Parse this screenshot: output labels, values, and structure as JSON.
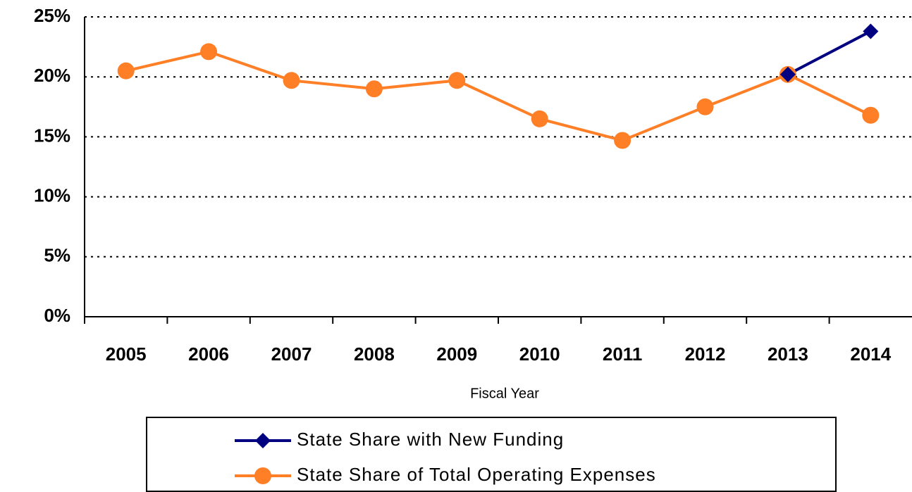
{
  "chart_data": {
    "type": "line",
    "x_label": "Fiscal Year",
    "categories": [
      "2005",
      "2006",
      "2007",
      "2008",
      "2009",
      "2010",
      "2011",
      "2012",
      "2013",
      "2014"
    ],
    "series": [
      {
        "name": "State Share with New Funding",
        "color": "#000080",
        "marker": "diamond",
        "values": [
          null,
          null,
          null,
          null,
          null,
          null,
          null,
          null,
          20.2,
          23.8
        ]
      },
      {
        "name": "State Share of Total Operating Expenses",
        "color": "#ff7f27",
        "marker": "circle",
        "values": [
          20.5,
          22.1,
          19.7,
          19.0,
          19.7,
          16.5,
          14.7,
          17.5,
          20.2,
          16.8
        ]
      }
    ],
    "ylim": [
      0,
      25
    ],
    "yticks": [
      {
        "value": 0,
        "label": "0%"
      },
      {
        "value": 5,
        "label": "5%"
      },
      {
        "value": 10,
        "label": "10%"
      },
      {
        "value": 15,
        "label": "15%"
      },
      {
        "value": 20,
        "label": "20%"
      },
      {
        "value": 25,
        "label": "25%"
      }
    ],
    "grid": true,
    "legend": "bottom"
  }
}
